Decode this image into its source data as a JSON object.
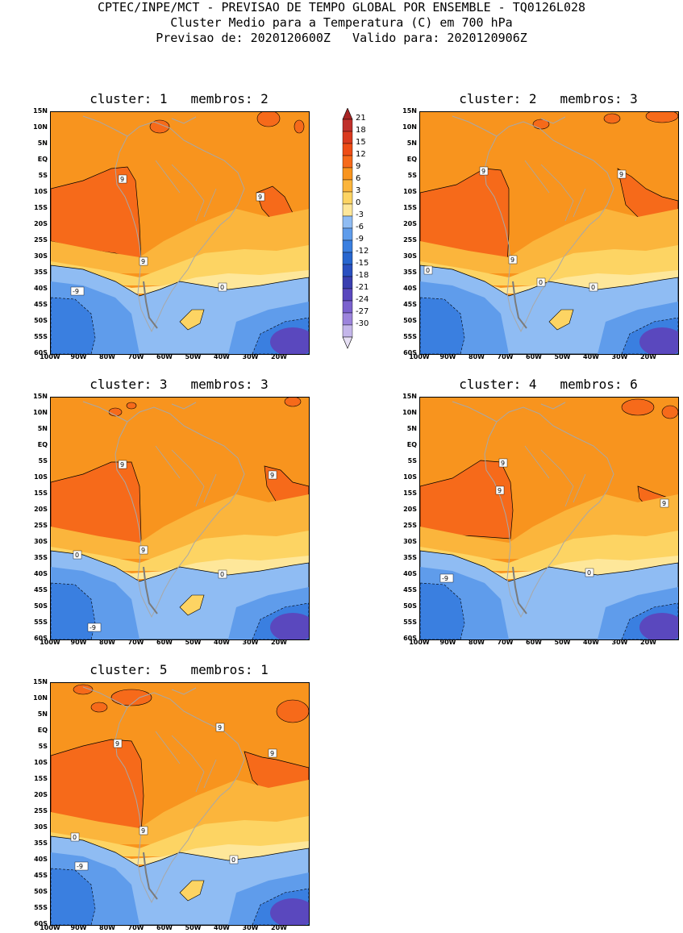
{
  "header": {
    "line1": "CPTEC/INPE/MCT - PREVISAO DE TEMPO GLOBAL POR ENSEMBLE - TQ0126L028",
    "line2": "Cluster Medio para a Temperatura (C) em 700 hPa",
    "line3": "Previsao de: 2020120600Z   Valido para: 2020120906Z"
  },
  "panels": [
    {
      "title": "cluster: 1   membros: 2"
    },
    {
      "title": "cluster: 2   membros: 3"
    },
    {
      "title": "cluster: 3   membros: 3"
    },
    {
      "title": "cluster: 4   membros: 6"
    },
    {
      "title": "cluster: 5   membros: 1"
    }
  ],
  "axes": {
    "lat_labels": [
      "15N",
      "10N",
      "5N",
      "EQ",
      "5S",
      "10S",
      "15S",
      "20S",
      "25S",
      "30S",
      "35S",
      "40S",
      "45S",
      "50S",
      "55S",
      "60S"
    ],
    "lon_labels": [
      "100W",
      "90W",
      "80W",
      "70W",
      "60W",
      "50W",
      "40W",
      "30W",
      "20W"
    ]
  },
  "colorbar": {
    "labels": [
      "21",
      "18",
      "15",
      "12",
      "9",
      "6",
      "3",
      "0",
      "-3",
      "-6",
      "-9",
      "-12",
      "-15",
      "-18",
      "-21",
      "-24",
      "-27",
      "-30"
    ],
    "colors": [
      "#c0302b",
      "#d93a1f",
      "#ee4d16",
      "#f66a1a",
      "#f8941e",
      "#fbb53c",
      "#fdd463",
      "#fee79a",
      "#8fbcf3",
      "#5f9ceb",
      "#3a7fe0",
      "#2766cf",
      "#2a50c0",
      "#3a3fb0",
      "#5a48be",
      "#7b62ce",
      "#9c84dc",
      "#c4b6ea"
    ],
    "arrow_top": "#a82424",
    "arrow_bottom": "#e7e0f5"
  },
  "contour_labels": {
    "p1": [
      "9",
      "9",
      "9",
      "0",
      "-9"
    ],
    "p2": [
      "9",
      "9",
      "9",
      "0",
      "0",
      "0"
    ],
    "p3": [
      "9",
      "9",
      "9",
      "0",
      "0",
      "-9"
    ],
    "p4": [
      "9",
      "9",
      "9",
      "0",
      "-9"
    ],
    "p5": [
      "9",
      "9",
      "9",
      "9",
      "0",
      "0",
      "-9"
    ]
  }
}
